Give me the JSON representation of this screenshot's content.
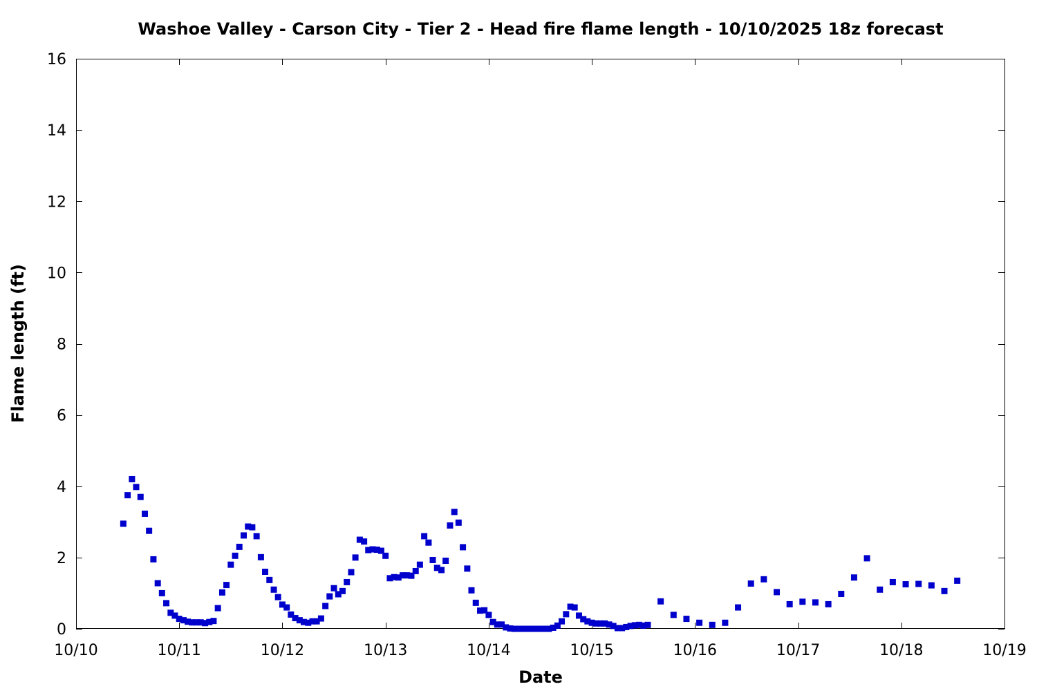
{
  "chart_data": {
    "type": "scatter",
    "title": "Washoe Valley - Carson City - Tier 2 - Head fire flame length - 10/10/2025 18z forecast",
    "xlabel": "Date",
    "ylabel": "Flame length (ft)",
    "xlim": [
      0,
      9
    ],
    "ylim": [
      0,
      16
    ],
    "x_ticks": [
      {
        "value": 0,
        "label": "10/10"
      },
      {
        "value": 1,
        "label": "10/11"
      },
      {
        "value": 2,
        "label": "10/12"
      },
      {
        "value": 3,
        "label": "10/13"
      },
      {
        "value": 4,
        "label": "10/14"
      },
      {
        "value": 5,
        "label": "10/15"
      },
      {
        "value": 6,
        "label": "10/16"
      },
      {
        "value": 7,
        "label": "10/17"
      },
      {
        "value": 8,
        "label": "10/18"
      },
      {
        "value": 9,
        "label": "10/19"
      }
    ],
    "y_ticks": [
      {
        "value": 0,
        "label": "0"
      },
      {
        "value": 2,
        "label": "2"
      },
      {
        "value": 4,
        "label": "4"
      },
      {
        "value": 6,
        "label": "6"
      },
      {
        "value": 8,
        "label": "8"
      },
      {
        "value": 10,
        "label": "10"
      },
      {
        "value": 12,
        "label": "12"
      },
      {
        "value": 14,
        "label": "14"
      },
      {
        "value": 16,
        "label": "16"
      }
    ],
    "grid": false,
    "marker_color": "#0000cc",
    "series": [
      {
        "points": [
          [
            0.458,
            2.95
          ],
          [
            0.5,
            3.75
          ],
          [
            0.542,
            4.2
          ],
          [
            0.583,
            3.98
          ],
          [
            0.625,
            3.7
          ],
          [
            0.667,
            3.23
          ],
          [
            0.708,
            2.75
          ],
          [
            0.75,
            1.95
          ],
          [
            0.792,
            1.28
          ],
          [
            0.833,
            1.0
          ],
          [
            0.875,
            0.72
          ],
          [
            0.917,
            0.45
          ],
          [
            0.958,
            0.37
          ],
          [
            1.0,
            0.28
          ],
          [
            1.042,
            0.24
          ],
          [
            1.083,
            0.2
          ],
          [
            1.125,
            0.18
          ],
          [
            1.167,
            0.18
          ],
          [
            1.208,
            0.18
          ],
          [
            1.25,
            0.16
          ],
          [
            1.292,
            0.19
          ],
          [
            1.333,
            0.22
          ],
          [
            1.375,
            0.58
          ],
          [
            1.417,
            1.02
          ],
          [
            1.458,
            1.23
          ],
          [
            1.5,
            1.8
          ],
          [
            1.542,
            2.05
          ],
          [
            1.583,
            2.3
          ],
          [
            1.625,
            2.62
          ],
          [
            1.667,
            2.87
          ],
          [
            1.708,
            2.85
          ],
          [
            1.75,
            2.6
          ],
          [
            1.792,
            2.01
          ],
          [
            1.833,
            1.6
          ],
          [
            1.875,
            1.37
          ],
          [
            1.917,
            1.1
          ],
          [
            1.958,
            0.89
          ],
          [
            2.0,
            0.68
          ],
          [
            2.042,
            0.6
          ],
          [
            2.083,
            0.4
          ],
          [
            2.125,
            0.3
          ],
          [
            2.167,
            0.24
          ],
          [
            2.208,
            0.19
          ],
          [
            2.25,
            0.17
          ],
          [
            2.292,
            0.21
          ],
          [
            2.333,
            0.21
          ],
          [
            2.375,
            0.29
          ],
          [
            2.417,
            0.64
          ],
          [
            2.458,
            0.91
          ],
          [
            2.5,
            1.14
          ],
          [
            2.542,
            0.97
          ],
          [
            2.583,
            1.06
          ],
          [
            2.625,
            1.31
          ],
          [
            2.667,
            1.59
          ],
          [
            2.708,
            2.0
          ],
          [
            2.75,
            2.5
          ],
          [
            2.792,
            2.45
          ],
          [
            2.833,
            2.21
          ],
          [
            2.875,
            2.23
          ],
          [
            2.917,
            2.22
          ],
          [
            2.958,
            2.19
          ],
          [
            3.0,
            2.05
          ],
          [
            3.042,
            1.42
          ],
          [
            3.083,
            1.45
          ],
          [
            3.125,
            1.44
          ],
          [
            3.167,
            1.5
          ],
          [
            3.208,
            1.5
          ],
          [
            3.25,
            1.49
          ],
          [
            3.292,
            1.62
          ],
          [
            3.333,
            1.8
          ],
          [
            3.375,
            2.6
          ],
          [
            3.417,
            2.42
          ],
          [
            3.458,
            1.93
          ],
          [
            3.5,
            1.71
          ],
          [
            3.542,
            1.65
          ],
          [
            3.583,
            1.91
          ],
          [
            3.625,
            2.9
          ],
          [
            3.667,
            3.28
          ],
          [
            3.708,
            2.98
          ],
          [
            3.75,
            2.29
          ],
          [
            3.792,
            1.69
          ],
          [
            3.833,
            1.08
          ],
          [
            3.875,
            0.73
          ],
          [
            3.917,
            0.51
          ],
          [
            3.958,
            0.52
          ],
          [
            4.0,
            0.39
          ],
          [
            4.042,
            0.19
          ],
          [
            4.083,
            0.12
          ],
          [
            4.125,
            0.12
          ],
          [
            4.167,
            0.04
          ],
          [
            4.208,
            0.01
          ],
          [
            4.25,
            0.0
          ],
          [
            4.292,
            0.0
          ],
          [
            4.333,
            0.0
          ],
          [
            4.375,
            0.0
          ],
          [
            4.417,
            0.0
          ],
          [
            4.458,
            0.0
          ],
          [
            4.5,
            0.0
          ],
          [
            4.542,
            0.0
          ],
          [
            4.583,
            0.0
          ],
          [
            4.625,
            0.03
          ],
          [
            4.667,
            0.09
          ],
          [
            4.708,
            0.21
          ],
          [
            4.75,
            0.41
          ],
          [
            4.792,
            0.62
          ],
          [
            4.833,
            0.6
          ],
          [
            4.875,
            0.37
          ],
          [
            4.917,
            0.27
          ],
          [
            4.958,
            0.21
          ],
          [
            5.0,
            0.17
          ],
          [
            5.042,
            0.15
          ],
          [
            5.083,
            0.15
          ],
          [
            5.125,
            0.15
          ],
          [
            5.167,
            0.12
          ],
          [
            5.208,
            0.08
          ],
          [
            5.25,
            0.02
          ],
          [
            5.292,
            0.02
          ],
          [
            5.333,
            0.05
          ],
          [
            5.375,
            0.08
          ],
          [
            5.417,
            0.1
          ],
          [
            5.458,
            0.11
          ],
          [
            5.5,
            0.09
          ],
          [
            5.542,
            0.11
          ],
          [
            5.667,
            0.77
          ],
          [
            5.792,
            0.39
          ],
          [
            5.917,
            0.28
          ],
          [
            6.042,
            0.17
          ],
          [
            6.167,
            0.11
          ],
          [
            6.292,
            0.17
          ],
          [
            6.417,
            0.6
          ],
          [
            6.542,
            1.27
          ],
          [
            6.667,
            1.39
          ],
          [
            6.792,
            1.03
          ],
          [
            6.917,
            0.69
          ],
          [
            7.042,
            0.76
          ],
          [
            7.167,
            0.74
          ],
          [
            7.292,
            0.69
          ],
          [
            7.417,
            0.98
          ],
          [
            7.542,
            1.44
          ],
          [
            7.667,
            1.98
          ],
          [
            7.792,
            1.1
          ],
          [
            7.917,
            1.31
          ],
          [
            8.042,
            1.25
          ],
          [
            8.167,
            1.26
          ],
          [
            8.292,
            1.22
          ],
          [
            8.417,
            1.06
          ],
          [
            8.542,
            1.35
          ]
        ]
      }
    ]
  }
}
